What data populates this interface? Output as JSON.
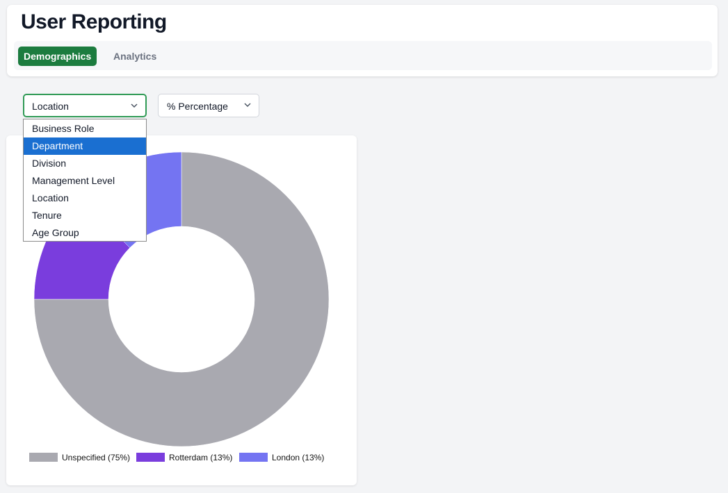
{
  "header": {
    "title": "User Reporting",
    "tabs": [
      {
        "label": "Demographics",
        "active": true
      },
      {
        "label": "Analytics",
        "active": false
      }
    ]
  },
  "filters": {
    "group_by": {
      "value": "Location",
      "options": [
        "Business Role",
        "Department",
        "Division",
        "Management Level",
        "Location",
        "Tenure",
        "Age Group"
      ],
      "highlighted": "Department"
    },
    "metric": {
      "value": "% Percentage"
    }
  },
  "colors": {
    "accent": "#1c7c3f",
    "dropdown_highlight": "#1a6fd1",
    "unspecified": "#a9a9b0",
    "rotterdam": "#7a3ddd",
    "london": "#7474f2"
  },
  "chart_data": {
    "type": "pie",
    "donut": true,
    "categories": [
      "Unspecified",
      "Rotterdam",
      "London"
    ],
    "values": [
      75,
      12.5,
      12.5
    ],
    "colors": [
      "#a9a9b0",
      "#7a3ddd",
      "#7474f2"
    ],
    "legend": [
      "Unspecified (75%)",
      "Rotterdam (13%)",
      "London (13%)"
    ],
    "legend_position": "bottom",
    "start_angle": "top",
    "direction": "clockwise"
  }
}
